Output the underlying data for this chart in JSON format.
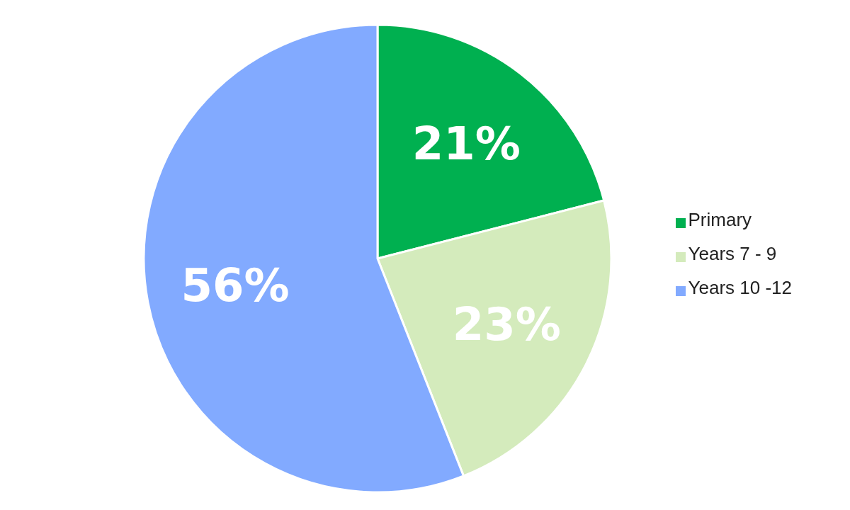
{
  "chart_data": {
    "type": "pie",
    "categories": [
      "Primary",
      "Years 7 - 9",
      "Years 10 -12"
    ],
    "values": [
      21,
      23,
      56
    ],
    "colors": [
      "#00b050",
      "#d4ebbc",
      "#82aaff"
    ],
    "value_labels": [
      "21%",
      "23%",
      "56%"
    ],
    "legend": "right"
  }
}
